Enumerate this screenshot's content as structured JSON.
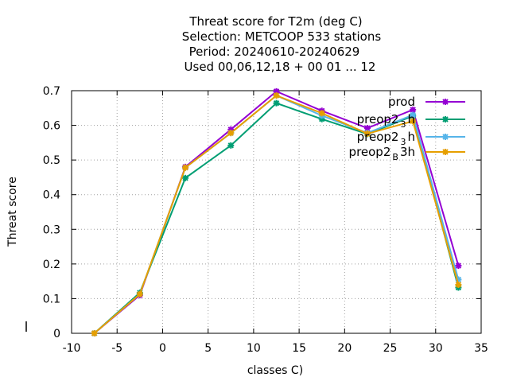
{
  "chart_data": {
    "type": "line",
    "title_lines": [
      "Threat score  for T2m (deg C)",
      "Selection: METCOOP    533 stations",
      "Period: 20240610-20240629",
      "Used  00,06,12,18 + 00 01 ... 12"
    ],
    "xlabel": "classes C)",
    "ylabel": "Threat score",
    "xlim": [
      -10,
      35
    ],
    "ylim": [
      0,
      0.7
    ],
    "xticks": [
      -10,
      -5,
      0,
      5,
      10,
      15,
      20,
      25,
      30,
      35
    ],
    "yticks": [
      0,
      0.1,
      0.2,
      0.3,
      0.4,
      0.5,
      0.6,
      0.7
    ],
    "grid": true,
    "legend_position": "top-right",
    "x": [
      -7.5,
      -2.5,
      2.5,
      7.5,
      12.5,
      17.5,
      22.5,
      27.5,
      32.5
    ],
    "series": [
      {
        "name": "prod",
        "color": "#9400d3",
        "values": [
          0.0,
          0.11,
          0.48,
          0.588,
          0.698,
          0.642,
          0.592,
          0.645,
          0.195
        ]
      },
      {
        "name_main": "preop2",
        "name_sub": "3",
        "name_tail": "h",
        "color": "#009e73",
        "values": [
          0.0,
          0.117,
          0.448,
          0.542,
          0.664,
          0.618,
          0.575,
          0.627,
          0.132
        ]
      },
      {
        "name_main": "preop2",
        "name_sub": "3",
        "name_tail": "h",
        "color": "#56b4e9",
        "values": [
          0.0,
          0.113,
          0.478,
          0.578,
          0.686,
          0.628,
          0.578,
          0.63,
          0.155
        ]
      },
      {
        "name_main": "preop2",
        "name_sub": "B",
        "name_tail": "3h",
        "color": "#e69f00",
        "values": [
          0.0,
          0.113,
          0.478,
          0.578,
          0.686,
          0.635,
          0.576,
          0.612,
          0.14
        ]
      }
    ]
  }
}
